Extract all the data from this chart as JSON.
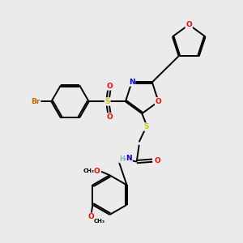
{
  "background_color": "#ebebeb",
  "bond_color": "#000000",
  "atom_colors": {
    "O": "#ff0000",
    "N": "#0000ff",
    "S": "#cccc00",
    "Br": "#cc6600",
    "H": "#7fbfbf",
    "C": "#000000"
  },
  "figsize": [
    3.0,
    3.0
  ],
  "dpi": 100,
  "lw": 1.4,
  "off": 0.055
}
